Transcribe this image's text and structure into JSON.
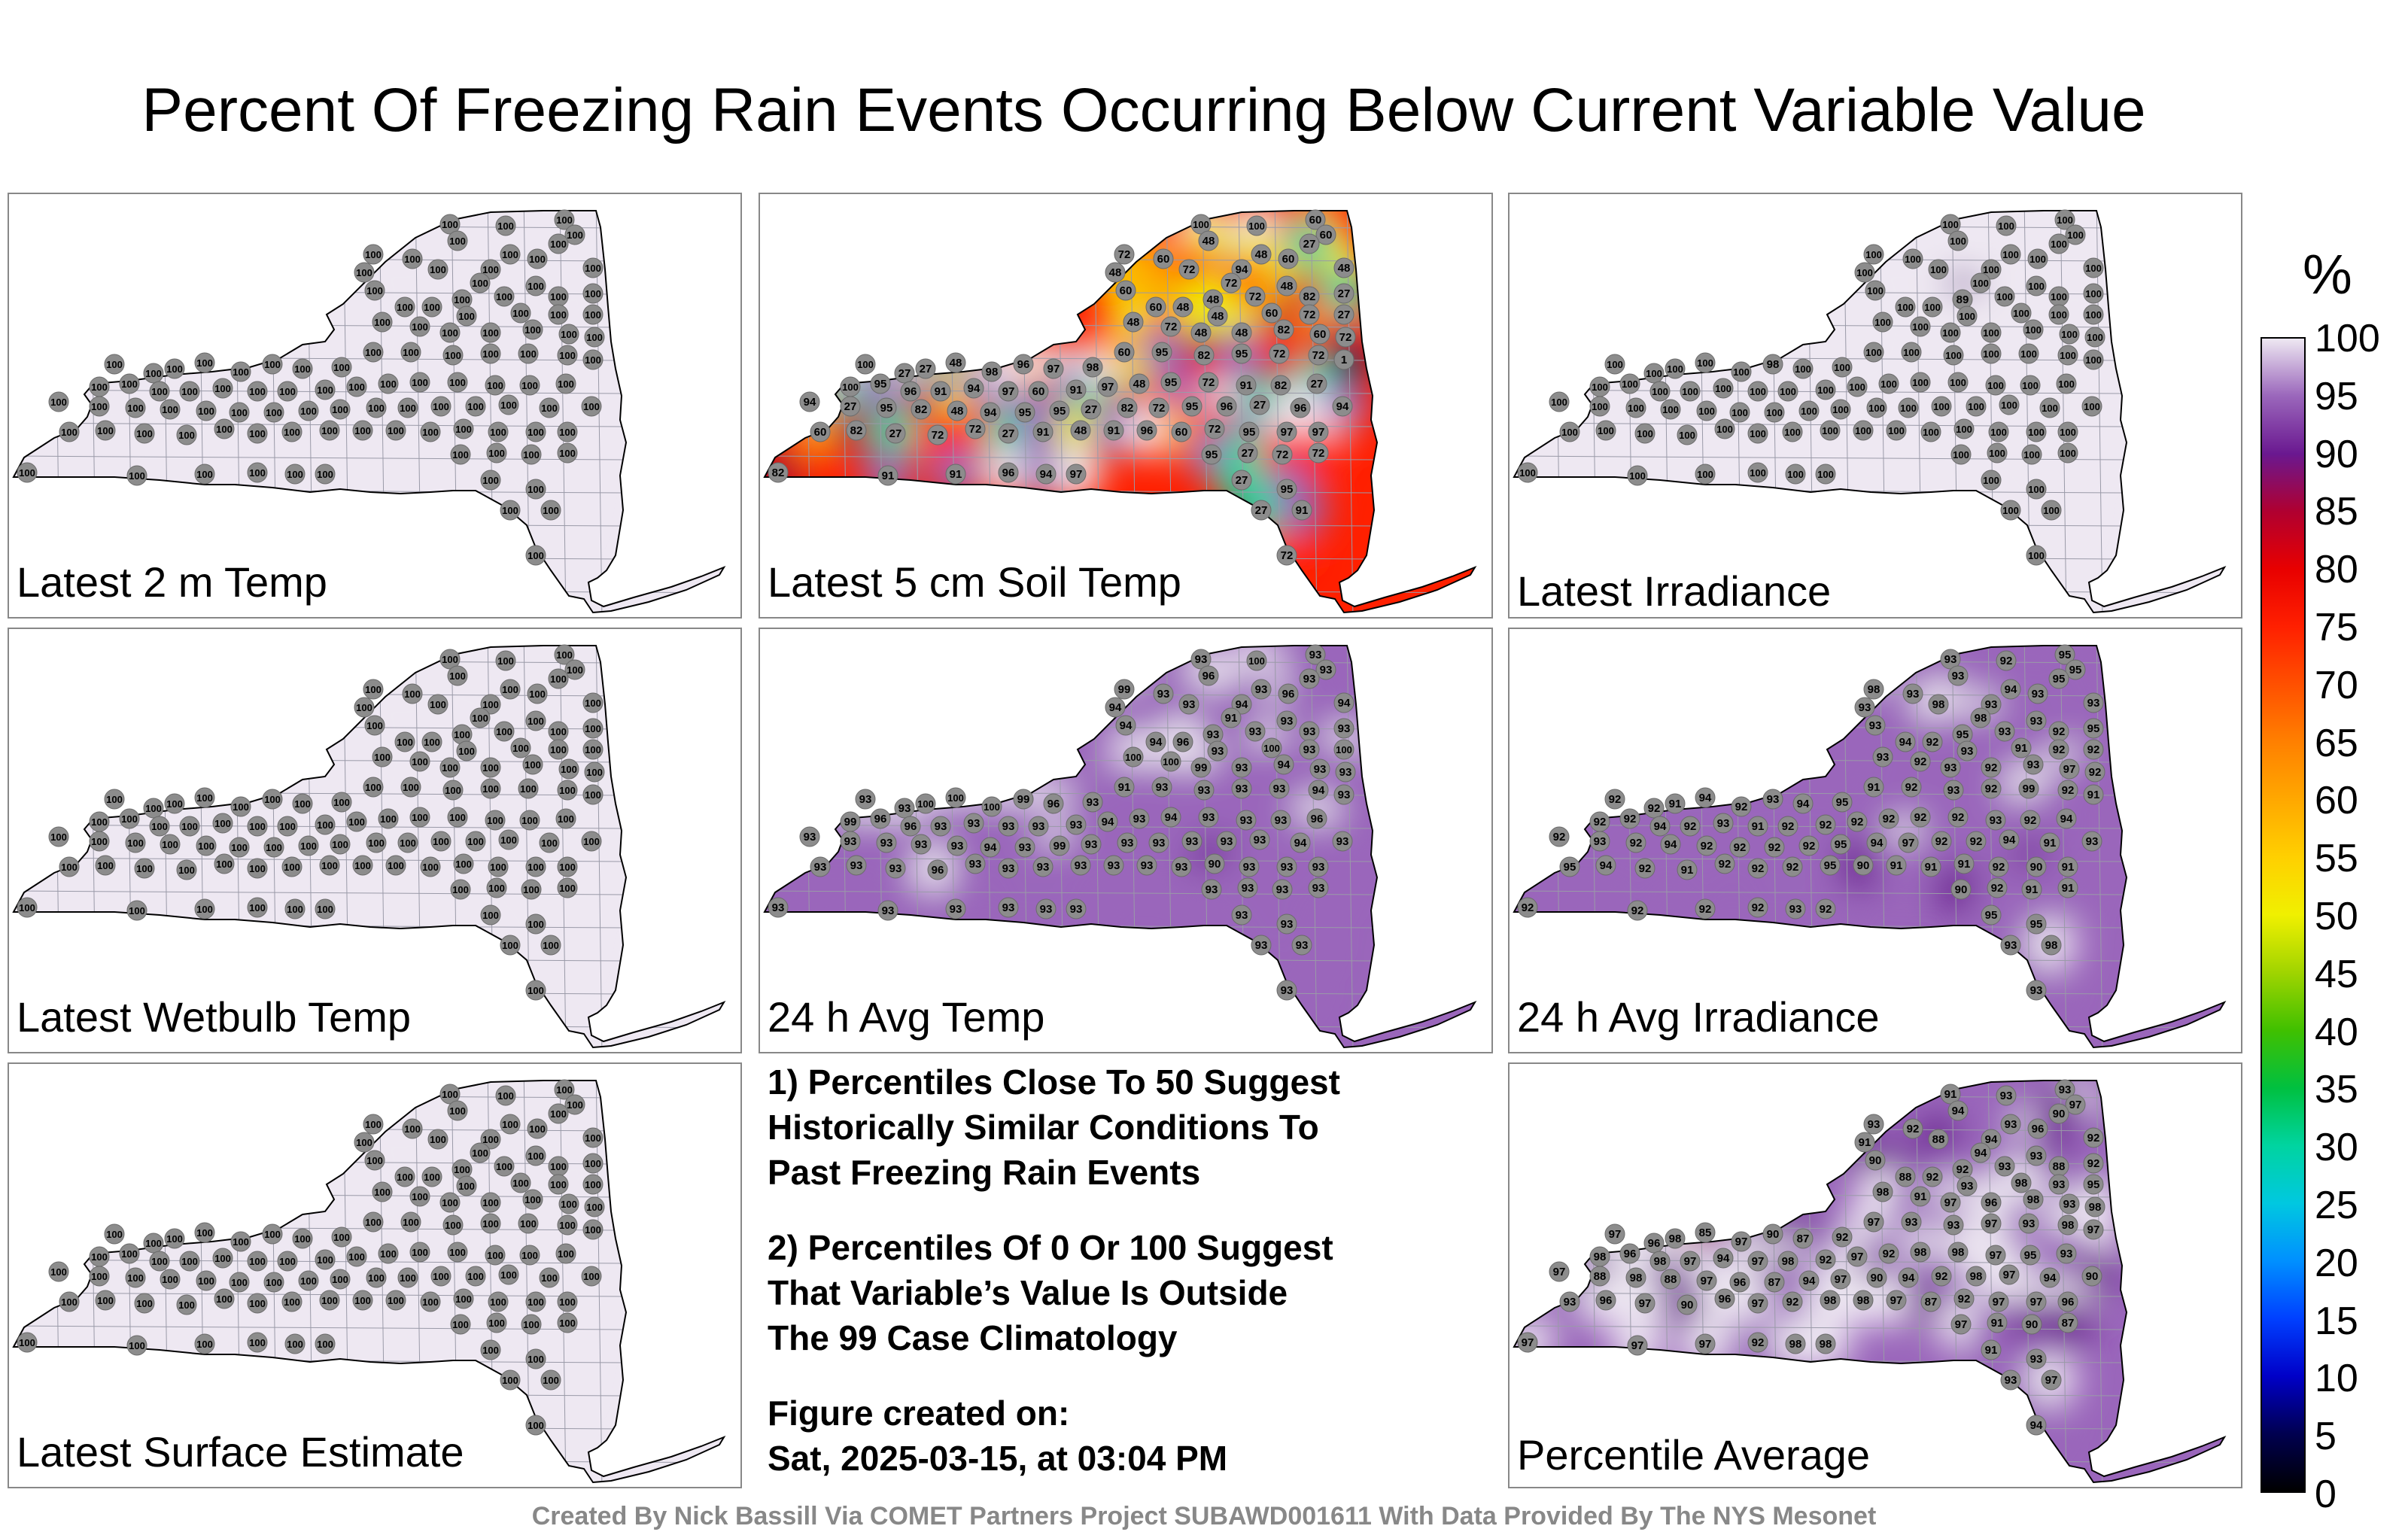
{
  "title": "Percent Of Freezing Rain Events Occurring Below Current Variable Value",
  "panels": [
    {
      "label": "Latest 2 m Temp",
      "values": [
        100,
        100,
        100,
        100,
        100,
        100,
        100,
        100,
        100,
        100,
        100,
        100,
        100,
        100,
        100,
        100,
        100,
        100,
        100,
        100,
        100,
        100,
        100,
        100,
        100,
        100,
        100,
        100,
        100,
        100,
        100,
        100,
        100,
        100,
        100,
        100,
        100,
        100,
        100,
        100,
        100,
        100,
        100,
        100,
        100,
        100,
        100,
        100,
        100,
        100,
        100,
        100,
        100,
        100,
        100,
        100,
        100,
        100,
        100,
        100,
        100,
        100,
        100,
        100,
        100,
        100,
        100,
        100,
        100,
        100,
        100,
        100,
        100,
        100,
        100,
        100,
        100,
        100,
        100,
        100,
        100,
        100,
        100,
        100,
        100,
        100,
        100,
        100,
        100,
        100,
        100,
        100,
        100,
        100,
        100,
        100,
        100,
        100,
        100,
        100,
        100,
        100,
        100,
        100,
        100,
        100,
        100,
        100,
        100,
        100
      ]
    },
    {
      "label": "Latest 5 cm Soil Temp",
      "values": [
        100,
        100,
        60,
        60,
        48,
        72,
        60,
        48,
        72,
        94,
        48,
        60,
        27,
        48,
        72,
        48,
        48,
        72,
        82,
        27,
        60,
        60,
        48,
        48,
        60,
        72,
        27,
        48,
        72,
        48,
        48,
        82,
        60,
        72,
        100,
        27,
        27,
        48,
        98,
        96,
        97,
        98,
        60,
        95,
        82,
        95,
        72,
        72,
        1,
        100,
        95,
        96,
        91,
        94,
        97,
        60,
        91,
        97,
        48,
        95,
        72,
        91,
        82,
        27,
        94,
        27,
        95,
        82,
        48,
        94,
        95,
        95,
        27,
        82,
        72,
        95,
        96,
        27,
        96,
        94,
        60,
        82,
        27,
        72,
        72,
        27,
        91,
        48,
        91,
        96,
        60,
        72,
        95,
        97,
        97,
        95,
        27,
        72,
        72,
        82,
        91,
        91,
        96,
        94,
        97,
        27,
        95,
        27,
        91,
        72,
        100
      ]
    },
    {
      "label": "Latest Irradiance",
      "values": [
        100,
        100,
        100,
        100,
        100,
        100,
        100,
        100,
        100,
        100,
        100,
        100,
        100,
        100,
        100,
        100,
        89,
        100,
        100,
        100,
        100,
        100,
        100,
        100,
        100,
        100,
        100,
        100,
        100,
        100,
        100,
        100,
        100,
        100,
        100,
        100,
        100,
        100,
        100,
        98,
        100,
        100,
        100,
        100,
        100,
        100,
        100,
        100,
        100,
        100,
        100,
        100,
        100,
        100,
        100,
        100,
        100,
        100,
        100,
        100,
        100,
        100,
        100,
        100,
        100,
        100,
        100,
        100,
        100,
        100,
        100,
        100,
        100,
        100,
        100,
        100,
        100,
        100,
        100,
        100,
        100,
        100,
        100,
        100,
        100,
        100,
        100,
        100,
        100,
        100,
        100,
        100,
        100,
        100,
        100,
        100,
        100,
        100,
        100,
        100,
        100,
        100,
        100,
        100,
        100,
        100,
        100,
        100,
        100,
        100
      ]
    },
    {
      "label": "Latest Wetbulb Temp",
      "values": [
        100,
        100,
        100,
        100,
        100,
        100,
        100,
        100,
        100,
        100,
        100,
        100,
        100,
        100,
        100,
        100,
        100,
        100,
        100,
        100,
        100,
        100,
        100,
        100,
        100,
        100,
        100,
        100,
        100,
        100,
        100,
        100,
        100,
        100,
        100,
        100,
        100,
        100,
        100,
        100,
        100,
        100,
        100,
        100,
        100,
        100,
        100,
        100,
        100,
        100,
        100,
        100,
        100,
        100,
        100,
        100,
        100,
        100,
        100,
        100,
        100,
        100,
        100,
        100,
        100,
        100,
        100,
        100,
        100,
        100,
        100,
        100,
        100,
        100,
        100,
        100,
        100,
        100,
        100,
        100,
        100,
        100,
        100,
        100,
        100,
        100,
        100,
        100,
        100,
        100,
        100,
        100,
        100,
        100,
        100,
        100,
        100,
        100,
        100,
        100,
        100,
        100,
        100,
        100,
        100,
        100,
        100,
        100,
        100,
        100
      ]
    },
    {
      "label": "24 h Avg Temp",
      "values": [
        93,
        100,
        93,
        93,
        96,
        99,
        93,
        94,
        93,
        94,
        93,
        96,
        93,
        94,
        91,
        93,
        93,
        93,
        93,
        93,
        94,
        94,
        96,
        93,
        100,
        93,
        100,
        100,
        100,
        99,
        93,
        94,
        93,
        93,
        93,
        93,
        100,
        100,
        100,
        99,
        96,
        93,
        91,
        93,
        93,
        93,
        93,
        94,
        93,
        99,
        96,
        96,
        93,
        93,
        93,
        93,
        93,
        94,
        93,
        94,
        93,
        93,
        93,
        96,
        93,
        93,
        93,
        93,
        93,
        94,
        93,
        99,
        93,
        93,
        93,
        93,
        93,
        93,
        94,
        93,
        93,
        93,
        93,
        96,
        93,
        93,
        93,
        93,
        93,
        93,
        93,
        90,
        93,
        93,
        93,
        93,
        93,
        93,
        93,
        93,
        93,
        93,
        93,
        93,
        93,
        93,
        93,
        93,
        93,
        93,
        93
      ]
    },
    {
      "label": "24 h Avg Irradiance",
      "values": [
        93,
        92,
        95,
        95,
        93,
        98,
        93,
        93,
        98,
        93,
        94,
        93,
        95,
        93,
        98,
        93,
        95,
        93,
        92,
        95,
        93,
        94,
        92,
        93,
        91,
        92,
        92,
        93,
        92,
        93,
        92,
        93,
        97,
        92,
        92,
        92,
        91,
        94,
        92,
        93,
        94,
        95,
        91,
        92,
        93,
        92,
        99,
        92,
        91,
        92,
        92,
        94,
        92,
        93,
        91,
        92,
        92,
        92,
        92,
        92,
        92,
        93,
        92,
        94,
        92,
        93,
        92,
        94,
        92,
        92,
        92,
        92,
        95,
        94,
        97,
        92,
        92,
        94,
        91,
        93,
        95,
        94,
        92,
        91,
        92,
        92,
        92,
        95,
        90,
        91,
        91,
        91,
        92,
        90,
        91,
        90,
        92,
        91,
        91,
        92,
        92,
        92,
        92
      ]
    },
    {
      "label": "Percentile Average",
      "values": [
        91,
        93,
        93,
        97,
        94,
        93,
        92,
        91,
        88,
        94,
        93,
        96,
        90,
        92,
        94,
        93,
        92,
        93,
        88,
        92,
        90,
        88,
        92,
        93,
        98,
        93,
        95,
        98,
        91,
        97,
        96,
        98,
        93,
        98,
        97,
        96,
        98,
        85,
        97,
        90,
        87,
        92,
        97,
        93,
        93,
        97,
        93,
        98,
        97,
        98,
        96,
        98,
        97,
        94,
        97,
        98,
        92,
        97,
        92,
        98,
        98,
        97,
        95,
        93,
        97,
        88,
        98,
        88,
        97,
        96,
        87,
        94,
        97,
        90,
        94,
        92,
        98,
        97,
        94,
        90,
        93,
        96,
        97,
        90,
        96,
        97,
        92,
        98,
        98,
        97,
        87,
        92,
        97,
        97,
        96,
        97,
        91,
        90,
        87,
        97,
        97,
        97,
        92,
        98,
        98
      ]
    }
  ],
  "notes": [
    "1) Percentiles Close To 50 Suggest\nHistorically Similar Conditions To\nPast Freezing Rain Events",
    "2) Percentiles Of 0 Or 100 Suggest\nThat Variable’s Value Is Outside\nThe 99 Case Climatology",
    "Figure created on:\nSat, 2025-03-15, at 03:04 PM"
  ],
  "colorbar": {
    "unit": "%",
    "ticks": [
      "100",
      "95",
      "90",
      "85",
      "80",
      "75",
      "70",
      "65",
      "60",
      "55",
      "50",
      "45",
      "40",
      "35",
      "30",
      "25",
      "20",
      "15",
      "10",
      "5",
      "0"
    ]
  },
  "credit": "Created By Nick Bassill Via COMET Partners Project SUBAWD001611 With Data Provided By The NYS Mesonet"
}
